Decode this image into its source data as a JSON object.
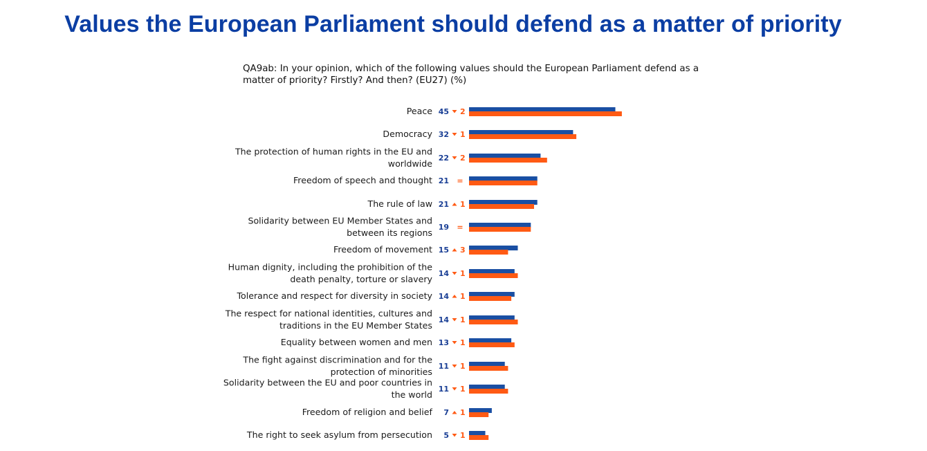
{
  "title": "Values the European Parliament should defend as a matter of priority",
  "question_lines": [
    "QA9ab: In your opinion, which of the following values should the European Parliament defend as a",
    "matter of priority? Firstly? And then? (EU27) (%)"
  ],
  "colors": {
    "current": "#1a4fa3",
    "previous": "#ff5a14",
    "title": "#0b3ea3"
  },
  "chart_data": {
    "type": "bar",
    "orientation": "horizontal",
    "categories": [
      "Peace",
      "Democracy",
      "The protection of human rights in the EU and worldwide",
      "Freedom of speech and thought",
      "The rule of law",
      "Solidarity between EU Member States and between its regions",
      "Freedom of movement",
      "Human dignity, including the prohibition of the death penalty, torture or slavery",
      "Tolerance and respect for diversity in society",
      "The respect for national identities, cultures and traditions in the EU Member States",
      "Equality between women and men",
      "The fight against discrimination and for the protection of minorities",
      "Solidarity between the EU and poor countries in the world",
      "Freedom of religion and belief",
      "The right to seek asylum from persecution"
    ],
    "category_lines": [
      [
        "Peace"
      ],
      [
        "Democracy"
      ],
      [
        "The protection of human rights in the EU and",
        "worldwide"
      ],
      [
        "Freedom of speech and thought"
      ],
      [
        "The rule of law"
      ],
      [
        "Solidarity between EU Member States and",
        "between its regions"
      ],
      [
        "Freedom of movement"
      ],
      [
        "Human dignity, including the prohibition of the",
        "death penalty, torture or slavery"
      ],
      [
        "Tolerance and respect for diversity in society"
      ],
      [
        "The respect for national identities, cultures and",
        "traditions in the EU Member States"
      ],
      [
        "Equality between women and men"
      ],
      [
        "The fight against discrimination and for the",
        "protection of minorities"
      ],
      [
        "Solidarity between the EU and poor countries in",
        "the world"
      ],
      [
        "Freedom of religion and belief"
      ],
      [
        "The right to seek asylum from persecution"
      ]
    ],
    "series": [
      {
        "values": [
          45,
          32,
          22,
          21,
          21,
          19,
          15,
          14,
          14,
          14,
          13,
          11,
          11,
          7,
          5
        ]
      },
      {
        "values": [
          47,
          33,
          24,
          21,
          20,
          19,
          12,
          15,
          13,
          15,
          14,
          12,
          12,
          6,
          6
        ]
      }
    ],
    "value_labels": [
      "45",
      "32",
      "22",
      "21",
      "21",
      "19",
      "15",
      "14",
      "14",
      "14",
      "13",
      "11",
      "11",
      "7",
      "5"
    ],
    "changes": [
      {
        "dir": "down",
        "value": "2"
      },
      {
        "dir": "down",
        "value": "1"
      },
      {
        "dir": "down",
        "value": "2"
      },
      {
        "dir": "equal",
        "value": "="
      },
      {
        "dir": "up",
        "value": "1"
      },
      {
        "dir": "equal",
        "value": "="
      },
      {
        "dir": "up",
        "value": "3"
      },
      {
        "dir": "down",
        "value": "1"
      },
      {
        "dir": "up",
        "value": "1"
      },
      {
        "dir": "down",
        "value": "1"
      },
      {
        "dir": "down",
        "value": "1"
      },
      {
        "dir": "down",
        "value": "1"
      },
      {
        "dir": "down",
        "value": "1"
      },
      {
        "dir": "up",
        "value": "1"
      },
      {
        "dir": "down",
        "value": "1"
      }
    ],
    "xlim": [
      0,
      50
    ],
    "grid": false,
    "legend": "none"
  }
}
